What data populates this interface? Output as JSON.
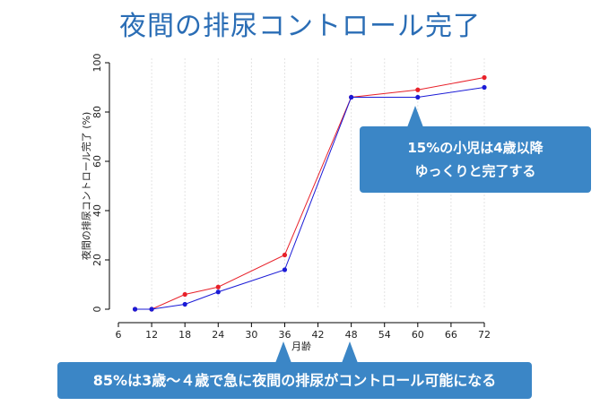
{
  "page": {
    "title": "夜間の排尿コントロール完了"
  },
  "chart_data": {
    "type": "line",
    "xlabel": "月齢",
    "ylabel": "夜間の排尿コントロール完了 (%)",
    "xlim": [
      6,
      72
    ],
    "ylim": [
      0,
      100
    ],
    "xticks": [
      6,
      12,
      18,
      24,
      30,
      36,
      42,
      48,
      54,
      60,
      66,
      72
    ],
    "yticks": [
      0,
      20,
      40,
      60,
      80,
      100
    ],
    "grid": "vertical",
    "series": [
      {
        "name": "red",
        "color": "#e8212a",
        "x": [
          9,
          12,
          18,
          24,
          36,
          48,
          60,
          72
        ],
        "y": [
          0,
          0,
          6,
          9,
          22,
          86,
          89,
          94
        ]
      },
      {
        "name": "blue",
        "color": "#1a1ad6",
        "x": [
          9,
          12,
          18,
          24,
          36,
          48,
          60,
          72
        ],
        "y": [
          0,
          0,
          2,
          7,
          16,
          86,
          86,
          90
        ]
      }
    ]
  },
  "callouts": {
    "late": {
      "line1": "15%の小児は4歳以降",
      "line2": "ゆっくりと完了する"
    },
    "early": {
      "text": "85%は3歳～４歳で急に夜間の排尿がコントロール可能になる"
    }
  }
}
